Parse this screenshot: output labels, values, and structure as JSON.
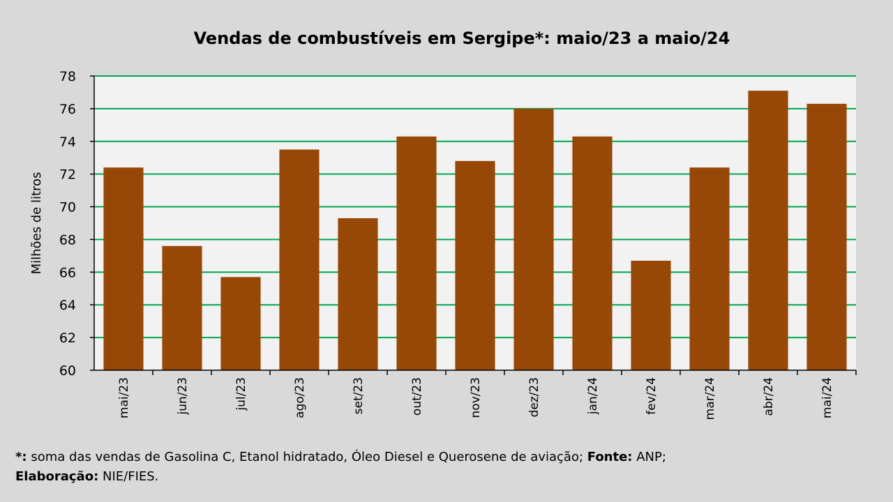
{
  "chart_data": {
    "type": "bar",
    "title": "Vendas de combustíveis em Sergipe*: maio/23 a maio/24",
    "xlabel": "",
    "ylabel": "Milhões de litros",
    "ylim": [
      60,
      78
    ],
    "yticks": [
      60,
      62,
      64,
      66,
      68,
      70,
      72,
      74,
      76,
      78
    ],
    "grid": true,
    "categories": [
      "mai/23",
      "jun/23",
      "jul/23",
      "ago/23",
      "set/23",
      "out/23",
      "nov/23",
      "dez/23",
      "jan/24",
      "fev/24",
      "mar/24",
      "abr/24",
      "mai/24"
    ],
    "values": [
      72.4,
      67.6,
      65.7,
      73.5,
      69.3,
      74.3,
      72.8,
      76.0,
      74.3,
      66.7,
      72.4,
      77.1,
      76.3
    ],
    "colors": {
      "bar": "#974806",
      "grid": "#00a650",
      "plot_bg": "#f2f2f2"
    }
  },
  "footnote": {
    "star_label": "*:",
    "star_text": " soma das vendas de Gasolina C, Etanol hidratado, Óleo Diesel e Querosene de aviação; ",
    "source_label": "Fonte:",
    "source_text": " ANP;",
    "elab_label": "Elaboração:",
    "elab_text": " NIE/FIES."
  }
}
